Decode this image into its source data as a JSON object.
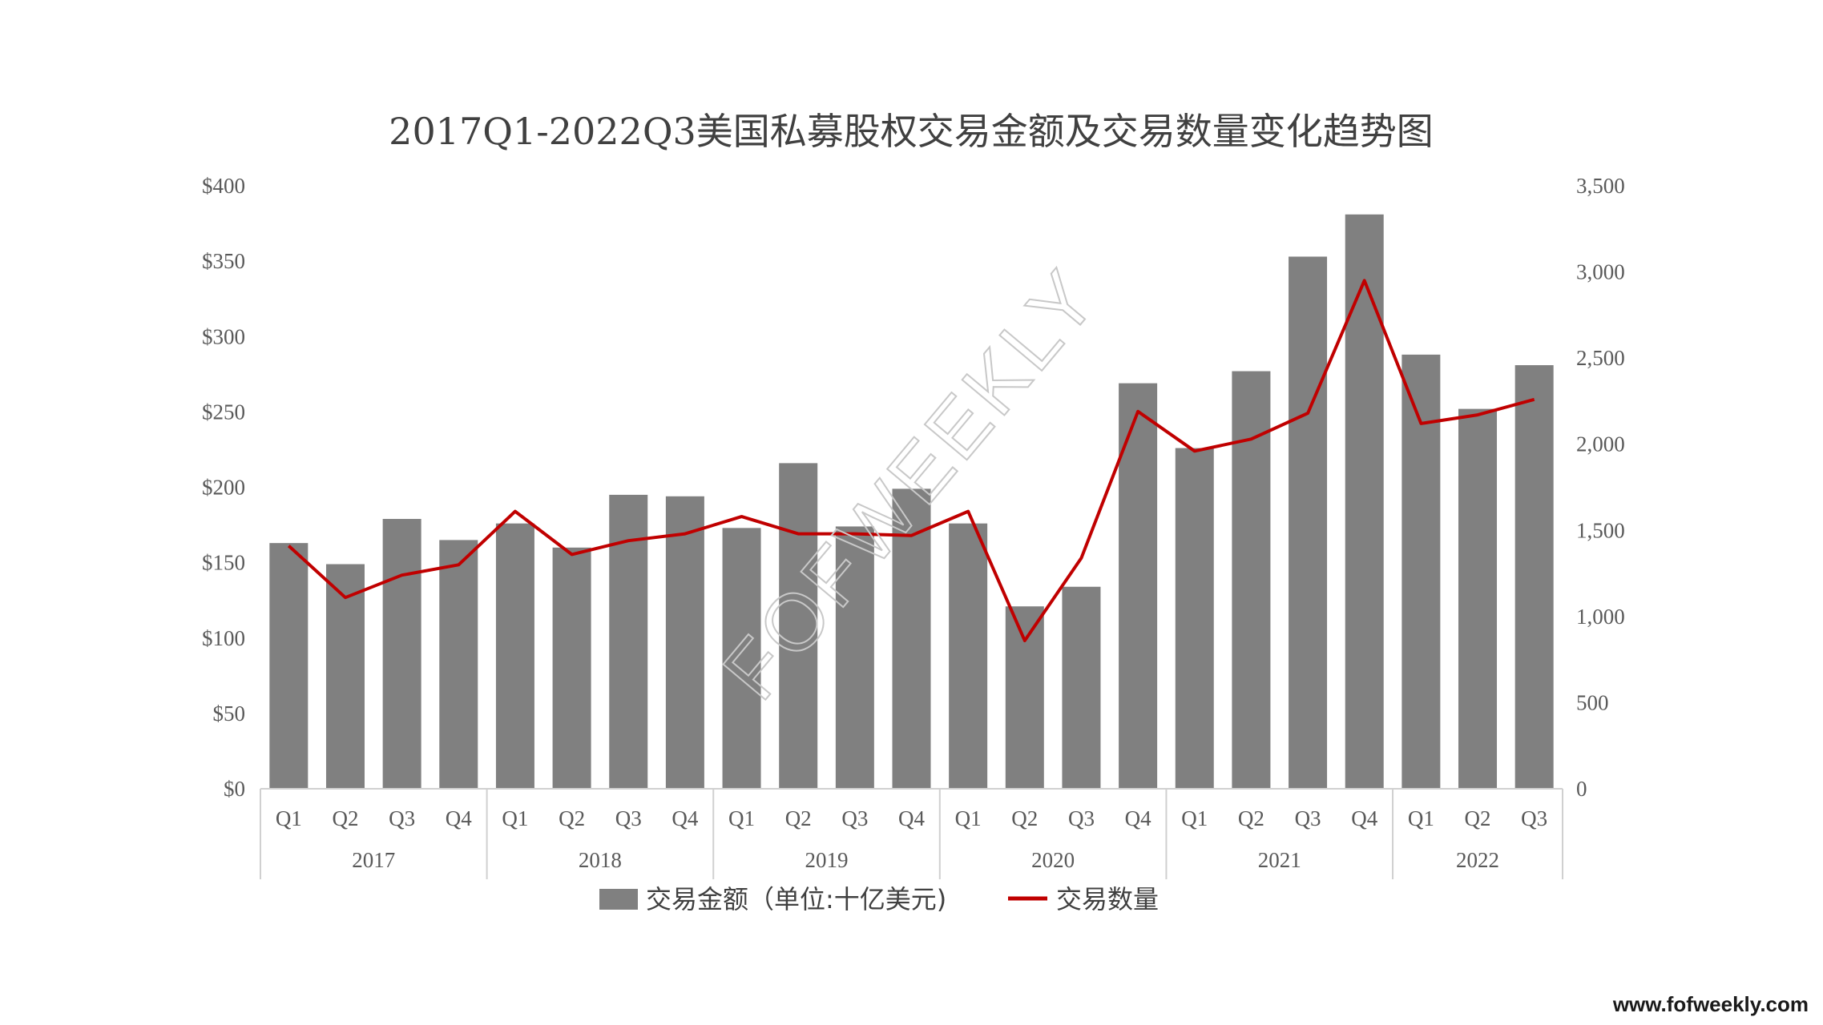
{
  "chart_data": {
    "type": "bar",
    "title": "2017Q1-2022Q3美国私募股权交易金额及交易数量变化趋势图",
    "categories": [
      "Q1",
      "Q2",
      "Q3",
      "Q4",
      "Q1",
      "Q2",
      "Q3",
      "Q4",
      "Q1",
      "Q2",
      "Q3",
      "Q4",
      "Q1",
      "Q2",
      "Q3",
      "Q4",
      "Q1",
      "Q2",
      "Q3",
      "Q4",
      "Q1",
      "Q2",
      "Q3"
    ],
    "years": [
      {
        "label": "2017",
        "count": 4
      },
      {
        "label": "2018",
        "count": 4
      },
      {
        "label": "2019",
        "count": 4
      },
      {
        "label": "2020",
        "count": 4
      },
      {
        "label": "2021",
        "count": 4
      },
      {
        "label": "2022",
        "count": 3
      }
    ],
    "series": [
      {
        "name": "交易金额（单位:十亿美元)",
        "type": "bar",
        "axis": "left",
        "color": "#808080",
        "values": [
          163,
          149,
          179,
          165,
          176,
          160,
          195,
          194,
          173,
          216,
          174,
          199,
          176,
          121,
          134,
          269,
          226,
          277,
          353,
          381,
          288,
          252,
          281
        ]
      },
      {
        "name": "交易数量",
        "type": "line",
        "axis": "right",
        "color": "#c00000",
        "values": [
          1410,
          1110,
          1240,
          1300,
          1610,
          1360,
          1440,
          1480,
          1580,
          1480,
          1480,
          1470,
          1610,
          860,
          1340,
          2190,
          1960,
          2030,
          2180,
          2950,
          2120,
          2170,
          2260
        ]
      }
    ],
    "y_left": {
      "min": 0,
      "max": 400,
      "ticks": [
        "$0",
        "$50",
        "$100",
        "$150",
        "$200",
        "$250",
        "$300",
        "$350",
        "$400"
      ]
    },
    "y_right": {
      "min": 0,
      "max": 3500,
      "ticks": [
        "0",
        "500",
        "1,000",
        "1,500",
        "2,000",
        "2,500",
        "3,000",
        "3,500"
      ]
    },
    "legend_position": "bottom",
    "grid": false
  },
  "watermark": "FOFWEEKLY",
  "site_url": "www.fofweekly.com"
}
